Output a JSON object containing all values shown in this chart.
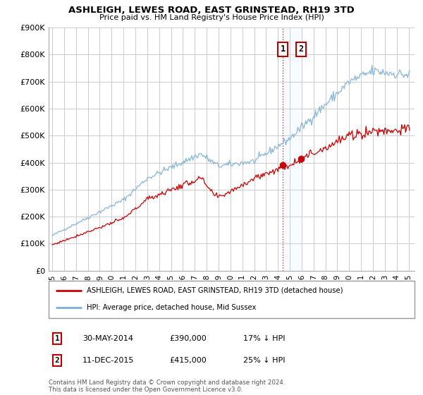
{
  "title": "ASHLEIGH, LEWES ROAD, EAST GRINSTEAD, RH19 3TD",
  "subtitle": "Price paid vs. HM Land Registry's House Price Index (HPI)",
  "red_label": "ASHLEIGH, LEWES ROAD, EAST GRINSTEAD, RH19 3TD (detached house)",
  "blue_label": "HPI: Average price, detached house, Mid Sussex",
  "transaction1": {
    "label": "1",
    "date": "30-MAY-2014",
    "price": "£390,000",
    "note": "17% ↓ HPI",
    "year": 2014.42
  },
  "transaction2": {
    "label": "2",
    "date": "11-DEC-2015",
    "price": "£415,000",
    "note": "25% ↓ HPI",
    "year": 2015.95
  },
  "footer": "Contains HM Land Registry data © Crown copyright and database right 2024.\nThis data is licensed under the Open Government Licence v3.0.",
  "ylim_max": 900000,
  "ytick_step": 100000,
  "xlim_start": 1994.7,
  "xlim_end": 2025.5,
  "blue_color": "#7BAFD4",
  "red_color": "#CC0000",
  "grid_color": "#CCCCCC",
  "shade_color": "#DDEEFF"
}
